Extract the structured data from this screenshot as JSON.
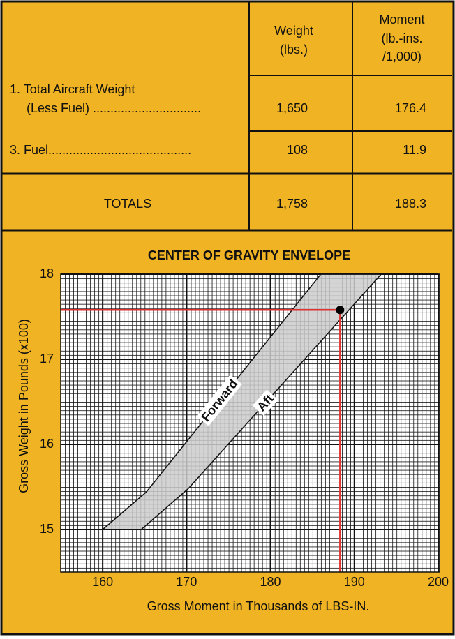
{
  "table": {
    "header": [
      [
        "Weight",
        "(lbs.)"
      ],
      [
        "Moment",
        "(lb.-ins.",
        "/1,000)"
      ]
    ],
    "rows": [
      [
        [
          "1. Total Aircraft Weight",
          "(Less Fuel) ..............................."
        ],
        "1,650",
        "176.4"
      ],
      [
        [
          "3. Fuel........................................."
        ],
        "108",
        "11.9"
      ],
      [
        [
          "TOTALS"
        ],
        "1,758",
        "188.3"
      ]
    ]
  },
  "chart_data": {
    "type": "envelope",
    "title": "CENTER OF GRAVITY ENVELOPE",
    "x_label": "Gross Moment in Thousands of LBS-IN.",
    "y_label": "Gross Weight in Pounds (x100)",
    "xlim": [
      155,
      200
    ],
    "ylim": [
      14.5,
      18
    ],
    "xticks": [
      160,
      170,
      180,
      190,
      200
    ],
    "yticks": [
      15,
      16,
      17,
      18
    ],
    "grid": true,
    "envelope": {
      "color": "#cccccc",
      "x": [
        160,
        165.2,
        186,
        193.2,
        170.2,
        164.6
      ],
      "y": [
        15,
        15.44,
        18,
        18,
        15.48,
        15
      ]
    },
    "edge_labels": [
      "Forward",
      "Aft"
    ],
    "point": {
      "x": 188.3,
      "y": 17.58,
      "color": "#000000"
    },
    "guide_color": "#e0312f"
  }
}
